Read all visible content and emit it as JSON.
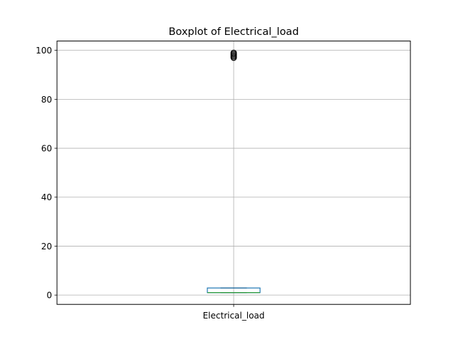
{
  "chart_data": {
    "type": "box",
    "title": "Boxplot of Electrical_load",
    "xlabel": "",
    "ylabel": "",
    "categories": [
      "Electrical_load"
    ],
    "ylim": [
      -3.8,
      103.8
    ],
    "yticks": [
      0,
      20,
      40,
      60,
      80,
      100
    ],
    "ytick_labels": [
      "0",
      "20",
      "40",
      "60",
      "80",
      "100"
    ],
    "grid": true,
    "boxes": [
      {
        "name": "Electrical_load",
        "whisker_low": 1.0,
        "q1": 1.0,
        "median": 1.0,
        "q3": 2.9,
        "whisker_high": 2.9,
        "outliers": [
          97.0,
          97.5,
          98.0,
          98.5,
          99.0
        ]
      }
    ],
    "colors": {
      "box": "#1f77b4",
      "median": "#2ca02c",
      "whisker": "#000000",
      "grid": "#b0b0b0",
      "outlier": "#000000"
    }
  }
}
